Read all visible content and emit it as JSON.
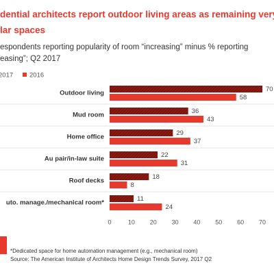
{
  "chart_data": {
    "type": "hbar",
    "title": [
      "dential architects report outdoor living areas as remaining very",
      "lar spaces"
    ],
    "subtitle": [
      "espondents reporting popularity of room “increasing” minus % reporting",
      "easing”; Q2 2017"
    ],
    "categories": [
      "Outdoor living",
      "Mud room",
      "Home office",
      "Au pair/in-law suite",
      "Roof decks",
      "uto. manage./mechanical room*"
    ],
    "series": [
      {
        "name": "2017",
        "color": "#8c1b13",
        "hatch": true,
        "values": [
          70,
          36,
          29,
          22,
          18,
          11
        ]
      },
      {
        "name": "2016",
        "color": "#e8392f",
        "hatch": false,
        "values": [
          58,
          43,
          37,
          31,
          8,
          24
        ]
      }
    ],
    "xlim": [
      0,
      70
    ],
    "xticks": [
      0,
      10,
      20,
      30,
      40,
      50,
      60,
      70
    ],
    "footnote": [
      "*Dedicated space for home automation management (e.g., mechanical room)",
      "Source: The American Institute of Architects Home Design Trends Survey, 2017 Q2"
    ]
  }
}
